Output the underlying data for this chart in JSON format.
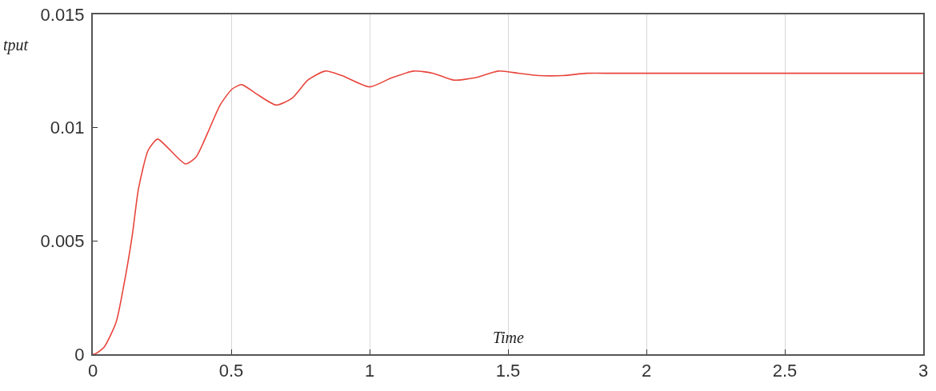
{
  "chart_data": {
    "type": "line",
    "xlabel": "Time",
    "ylabel": "tput",
    "x": [
      0,
      0.006,
      0.04,
      0.084,
      0.113,
      0.142,
      0.165,
      0.2,
      0.234,
      0.272,
      0.335,
      0.373,
      0.416,
      0.46,
      0.503,
      0.538,
      0.59,
      0.662,
      0.72,
      0.777,
      0.84,
      0.9,
      1.0,
      1.08,
      1.159,
      1.23,
      1.303,
      1.38,
      1.465,
      1.54,
      1.61,
      1.7,
      1.783,
      1.88,
      1.977,
      2.1,
      2.25,
      2.4,
      2.55,
      2.7,
      2.85,
      3
    ],
    "series": [
      {
        "color": "#e8453c",
        "values": [
          0,
          0,
          0.0003,
          0.0014,
          0.0031,
          0.0052,
          0.0073,
          0.009,
          0.0095,
          0.0091,
          0.0084,
          0.0087,
          0.0098,
          0.011,
          0.0117,
          0.0119,
          0.0115,
          0.011,
          0.0113,
          0.0121,
          0.0125,
          0.0123,
          0.0118,
          0.0122,
          0.0125,
          0.0124,
          0.0121,
          0.0122,
          0.0125,
          0.0124,
          0.0123,
          0.0123,
          0.0124,
          0.0124,
          0.0124,
          0.0124,
          0.0124,
          0.0124,
          0.0124,
          0.0124,
          0.0124,
          0.0124
        ]
      }
    ],
    "xlim": [
      0,
      3
    ],
    "xticks": [
      0,
      0.5,
      1,
      1.5,
      2,
      2.5,
      3
    ],
    "ylim": [
      0,
      0.015
    ],
    "yticks": [
      0,
      0.005,
      0.01,
      0.015
    ],
    "grid": "x",
    "line_style": "solid",
    "marker": "none"
  }
}
